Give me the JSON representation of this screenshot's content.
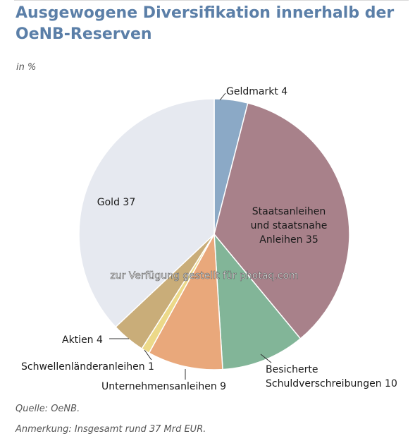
{
  "title_line1": "Ausgewogene Diversifikation innerhalb der",
  "title_line2": "OeNB-Reserven",
  "unit": "in %",
  "source": "Quelle: OeNB.",
  "note": "Anmerkung: Insgesamt rund 37 Mrd EUR.",
  "watermark": "zur Verfügung gestellt für photaq.com",
  "chart_data": {
    "type": "pie",
    "slices": [
      {
        "label": "Geldmarkt",
        "value": 4,
        "color": "#8ba9c6",
        "text": [
          "Geldmarkt 4"
        ]
      },
      {
        "label": "Staatsanleihen und staatsnahe Anleihen",
        "value": 35,
        "color": "#a8818a",
        "text": [
          "Staatsanleihen",
          "und staatsnahe",
          "Anleihen 35"
        ]
      },
      {
        "label": "Besicherte Schuldverschreibungen",
        "value": 10,
        "color": "#82b598",
        "text": [
          "Besicherte",
          "Schuldverschreibungen 10"
        ]
      },
      {
        "label": "Unternehmensanleihen",
        "value": 9,
        "color": "#e9a87b",
        "text": [
          "Unternehmensanleihen 9"
        ]
      },
      {
        "label": "Schwellenländeranleihen",
        "value": 1,
        "color": "#ecd989",
        "text": [
          "Schwellenländeranleihen 1"
        ]
      },
      {
        "label": "Aktien",
        "value": 4,
        "color": "#c9ad79",
        "text": [
          "Aktien 4"
        ]
      },
      {
        "label": "Gold",
        "value": 37,
        "color": "#e6e9f0",
        "text": [
          "Gold 37"
        ]
      }
    ]
  }
}
